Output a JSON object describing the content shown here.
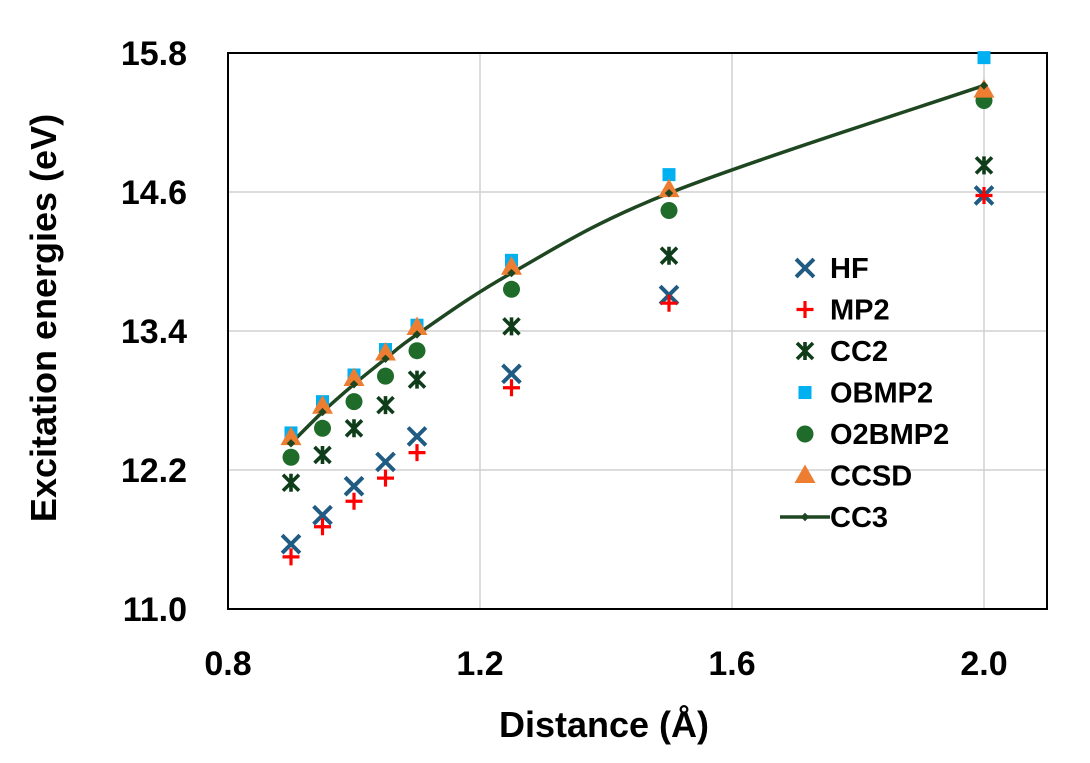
{
  "chart_data": {
    "type": "scatter",
    "title": "",
    "xlabel": "Distance (Å)",
    "ylabel": "Excitation energies (eV)",
    "xlim": [
      0.8,
      2.1
    ],
    "ylim": [
      11.0,
      15.8
    ],
    "x_ticks": [
      0.8,
      1.2,
      1.6,
      2.0
    ],
    "x_tick_labels": [
      "0.8",
      "1.2",
      "1.6",
      "2.0"
    ],
    "y_ticks": [
      11.0,
      12.2,
      13.4,
      14.6,
      15.8
    ],
    "y_tick_labels": [
      "11.0",
      "12.2",
      "13.4",
      "14.6",
      "15.8"
    ],
    "grid": true,
    "legend_position": "right",
    "x": [
      0.9,
      0.95,
      1.0,
      1.05,
      1.1,
      1.25,
      1.5,
      2.0
    ],
    "series": [
      {
        "name": "HF",
        "marker": "x",
        "color": "#1f5b82",
        "values": [
          11.56,
          11.81,
          12.06,
          12.27,
          12.49,
          13.03,
          13.71,
          14.57
        ]
      },
      {
        "name": "MP2",
        "marker": "plus",
        "color": "#ff0000",
        "values": [
          11.45,
          11.71,
          11.93,
          12.13,
          12.35,
          12.91,
          13.64,
          14.57
        ]
      },
      {
        "name": "CC2",
        "marker": "asterisk",
        "color": "#0f3d1a",
        "values": [
          12.09,
          12.33,
          12.56,
          12.76,
          12.98,
          13.44,
          14.05,
          14.83
        ]
      },
      {
        "name": "OBMP2",
        "marker": "square",
        "color": "#00b0f0",
        "values": [
          12.52,
          12.79,
          13.02,
          13.24,
          13.45,
          14.01,
          14.75,
          15.76
        ]
      },
      {
        "name": "O2BMP2",
        "marker": "circle",
        "color": "#1e6b2a",
        "values": [
          12.31,
          12.56,
          12.79,
          13.01,
          13.23,
          13.76,
          14.44,
          15.39
        ]
      },
      {
        "name": "CCSD",
        "marker": "triangle",
        "color": "#ed7d31",
        "values": [
          12.48,
          12.75,
          12.99,
          13.21,
          13.43,
          13.95,
          14.62,
          15.48
        ]
      },
      {
        "name": "CC3",
        "marker": "line",
        "color": "#1e4620",
        "values": [
          12.43,
          12.7,
          12.94,
          13.16,
          13.37,
          13.9,
          14.59,
          15.52
        ]
      }
    ]
  }
}
